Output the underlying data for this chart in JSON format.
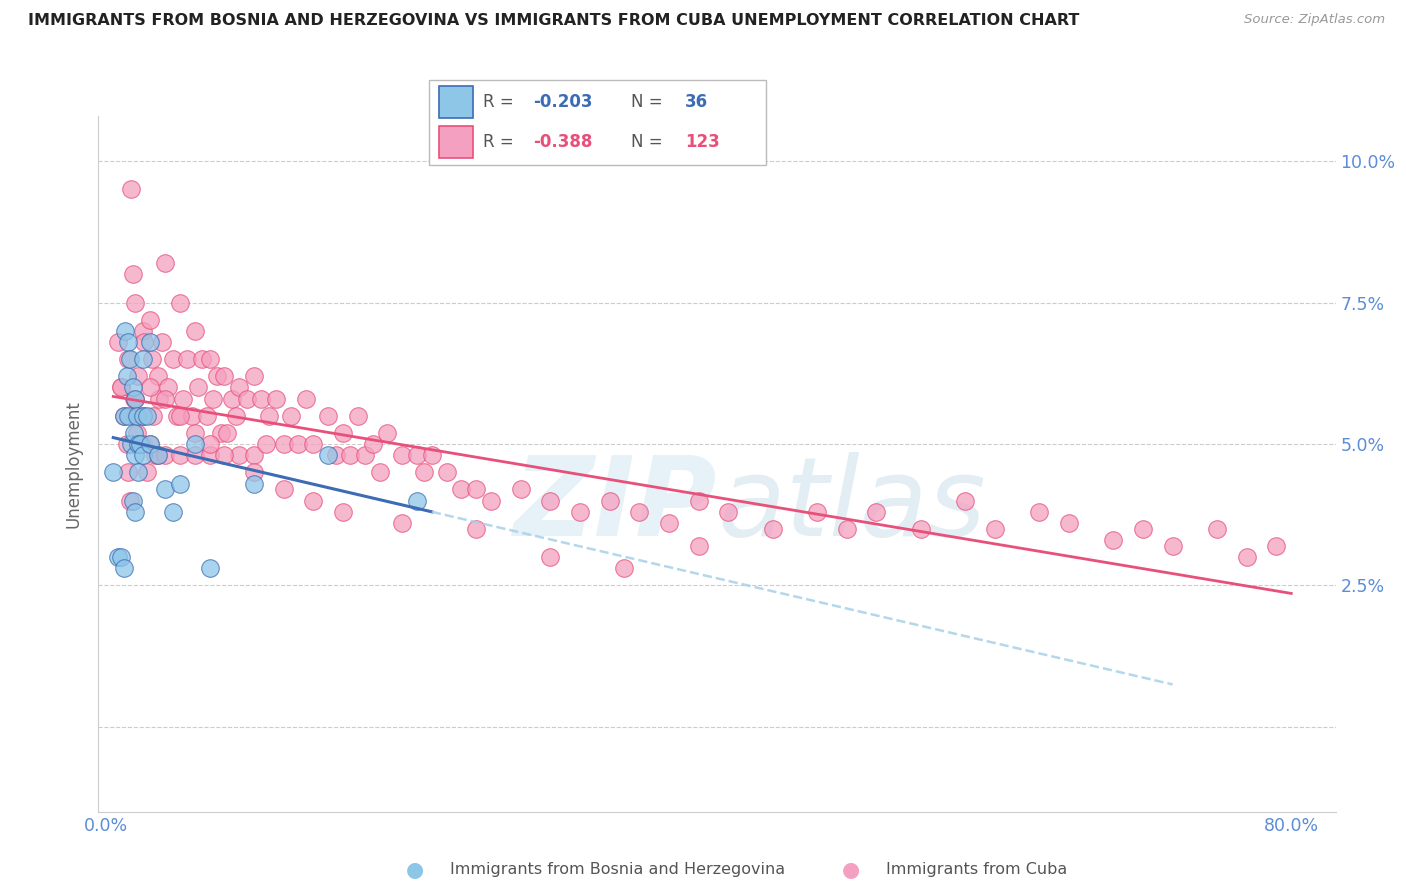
{
  "title": "IMMIGRANTS FROM BOSNIA AND HERZEGOVINA VS IMMIGRANTS FROM CUBA UNEMPLOYMENT CORRELATION CHART",
  "source": "Source: ZipAtlas.com",
  "ylabel": "Unemployment",
  "yticks": [
    0.0,
    0.025,
    0.05,
    0.075,
    0.1
  ],
  "ytick_labels": [
    "",
    "2.5%",
    "5.0%",
    "7.5%",
    "10.0%"
  ],
  "xlim": [
    -0.005,
    0.83
  ],
  "ylim": [
    -0.015,
    0.108
  ],
  "color_bosnia": "#8EC6E8",
  "color_cuba": "#F4A0C0",
  "color_line_bosnia": "#3D6CB5",
  "color_line_cuba": "#E8507A",
  "color_line_dashed": "#A8D0E8",
  "color_axis_labels": "#5B8DD9",
  "grid_color": "#CCCCCC",
  "bosnia_x": [
    0.005,
    0.008,
    0.01,
    0.012,
    0.012,
    0.013,
    0.014,
    0.015,
    0.015,
    0.016,
    0.017,
    0.018,
    0.018,
    0.019,
    0.02,
    0.02,
    0.02,
    0.021,
    0.022,
    0.022,
    0.023,
    0.025,
    0.025,
    0.025,
    0.028,
    0.03,
    0.03,
    0.035,
    0.04,
    0.045,
    0.05,
    0.06,
    0.07,
    0.1,
    0.15,
    0.21
  ],
  "bosnia_y": [
    0.045,
    0.03,
    0.03,
    0.028,
    0.055,
    0.07,
    0.062,
    0.068,
    0.055,
    0.065,
    0.05,
    0.06,
    0.04,
    0.052,
    0.048,
    0.058,
    0.038,
    0.055,
    0.05,
    0.045,
    0.05,
    0.065,
    0.055,
    0.048,
    0.055,
    0.068,
    0.05,
    0.048,
    0.042,
    0.038,
    0.043,
    0.05,
    0.028,
    0.043,
    0.048,
    0.04
  ],
  "cuba_x": [
    0.008,
    0.01,
    0.012,
    0.014,
    0.015,
    0.016,
    0.017,
    0.018,
    0.019,
    0.02,
    0.02,
    0.021,
    0.022,
    0.023,
    0.025,
    0.025,
    0.026,
    0.028,
    0.03,
    0.03,
    0.031,
    0.032,
    0.033,
    0.035,
    0.035,
    0.036,
    0.038,
    0.04,
    0.04,
    0.042,
    0.045,
    0.048,
    0.05,
    0.05,
    0.052,
    0.055,
    0.058,
    0.06,
    0.06,
    0.062,
    0.065,
    0.068,
    0.07,
    0.07,
    0.072,
    0.075,
    0.078,
    0.08,
    0.082,
    0.085,
    0.088,
    0.09,
    0.09,
    0.095,
    0.1,
    0.1,
    0.105,
    0.108,
    0.11,
    0.115,
    0.12,
    0.125,
    0.13,
    0.135,
    0.14,
    0.15,
    0.155,
    0.16,
    0.165,
    0.17,
    0.175,
    0.18,
    0.185,
    0.19,
    0.2,
    0.21,
    0.215,
    0.22,
    0.23,
    0.24,
    0.25,
    0.26,
    0.28,
    0.3,
    0.32,
    0.34,
    0.36,
    0.38,
    0.4,
    0.42,
    0.45,
    0.48,
    0.5,
    0.52,
    0.55,
    0.58,
    0.6,
    0.63,
    0.65,
    0.68,
    0.7,
    0.72,
    0.75,
    0.77,
    0.79,
    0.01,
    0.015,
    0.02,
    0.025,
    0.03,
    0.04,
    0.05,
    0.06,
    0.07,
    0.08,
    0.1,
    0.12,
    0.14,
    0.16,
    0.2,
    0.25,
    0.3,
    0.35,
    0.4
  ],
  "cuba_y": [
    0.068,
    0.06,
    0.055,
    0.05,
    0.045,
    0.04,
    0.095,
    0.08,
    0.058,
    0.075,
    0.055,
    0.052,
    0.062,
    0.05,
    0.07,
    0.05,
    0.068,
    0.045,
    0.072,
    0.05,
    0.065,
    0.055,
    0.048,
    0.062,
    0.048,
    0.058,
    0.068,
    0.082,
    0.048,
    0.06,
    0.065,
    0.055,
    0.075,
    0.048,
    0.058,
    0.065,
    0.055,
    0.07,
    0.048,
    0.06,
    0.065,
    0.055,
    0.065,
    0.048,
    0.058,
    0.062,
    0.052,
    0.062,
    0.052,
    0.058,
    0.055,
    0.06,
    0.048,
    0.058,
    0.062,
    0.048,
    0.058,
    0.05,
    0.055,
    0.058,
    0.05,
    0.055,
    0.05,
    0.058,
    0.05,
    0.055,
    0.048,
    0.052,
    0.048,
    0.055,
    0.048,
    0.05,
    0.045,
    0.052,
    0.048,
    0.048,
    0.045,
    0.048,
    0.045,
    0.042,
    0.042,
    0.04,
    0.042,
    0.04,
    0.038,
    0.04,
    0.038,
    0.036,
    0.04,
    0.038,
    0.035,
    0.038,
    0.035,
    0.038,
    0.035,
    0.04,
    0.035,
    0.038,
    0.036,
    0.033,
    0.035,
    0.032,
    0.035,
    0.03,
    0.032,
    0.06,
    0.065,
    0.058,
    0.055,
    0.06,
    0.058,
    0.055,
    0.052,
    0.05,
    0.048,
    0.045,
    0.042,
    0.04,
    0.038,
    0.036,
    0.035,
    0.03,
    0.028,
    0.032
  ]
}
